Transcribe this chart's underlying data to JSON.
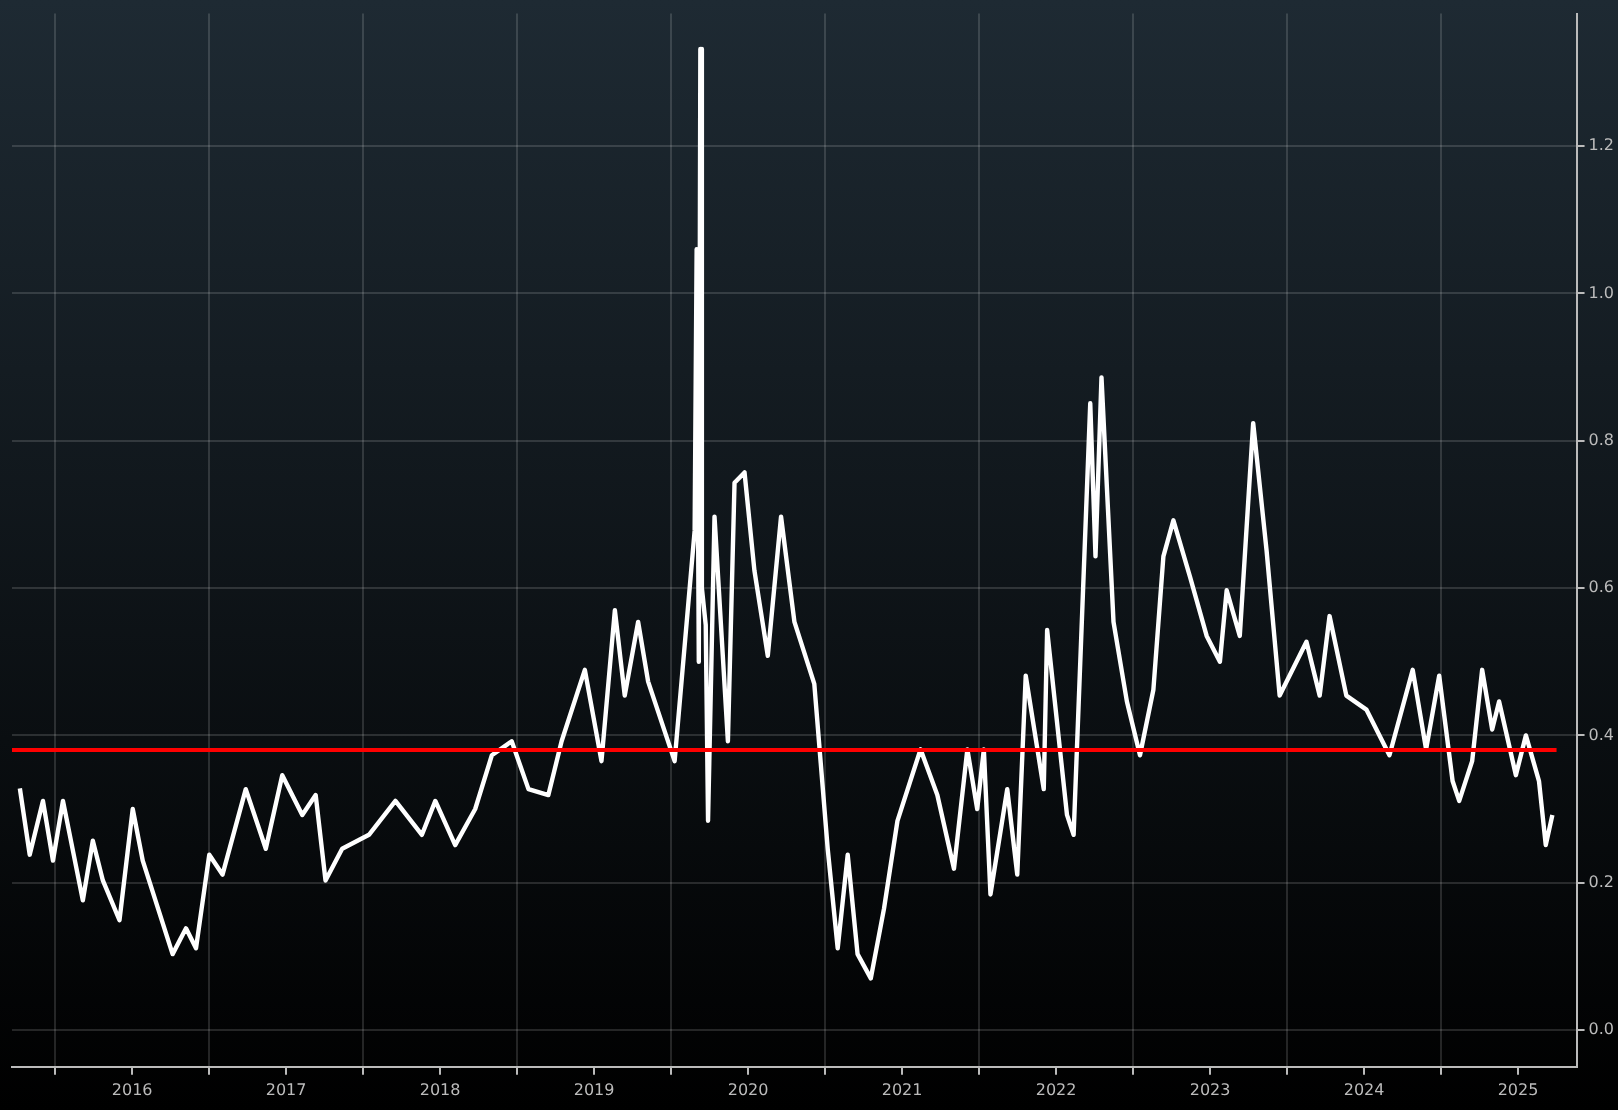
{
  "chart_data": {
    "type": "line",
    "color": "#ffffff",
    "line_style": "solid",
    "marker": "none",
    "grid": true,
    "legend": false,
    "x": [
      2015.771,
      2015.835,
      2015.921,
      2015.986,
      2016.051,
      2016.18,
      2016.245,
      2016.31,
      2016.418,
      2016.504,
      2016.569,
      2016.763,
      2016.85,
      2016.915,
      2017.001,
      2017.087,
      2017.238,
      2017.368,
      2017.475,
      2017.605,
      2017.692,
      2017.756,
      2017.864,
      2018.038,
      2018.21,
      2018.382,
      2018.469,
      2018.598,
      2018.728,
      2018.836,
      2018.965,
      2019.074,
      2019.203,
      2019.289,
      2019.44,
      2019.548,
      2019.635,
      2019.699,
      2019.786,
      2019.851,
      2020.023,
      2020.153,
      2020.166,
      2020.18,
      2020.19,
      2020.2,
      2020.225,
      2020.24,
      2020.282,
      2020.369,
      2020.412,
      2020.477,
      2020.541,
      2020.628,
      2020.714,
      2020.801,
      2020.93,
      2021.017,
      2021.082,
      2021.147,
      2021.211,
      2021.297,
      2021.383,
      2021.47,
      2021.62,
      2021.729,
      2021.837,
      2021.924,
      2021.988,
      2022.031,
      2022.074,
      2022.183,
      2022.248,
      2022.303,
      2022.42,
      2022.442,
      2022.571,
      2022.614,
      2022.722,
      2022.756,
      2022.795,
      2022.873,
      2022.96,
      2023.045,
      2023.132,
      2023.197,
      2023.262,
      2023.369,
      2023.478,
      2023.564,
      2023.608,
      2023.693,
      2023.78,
      2023.867,
      2023.952,
      2024.126,
      2024.212,
      2024.276,
      2024.385,
      2024.515,
      2024.665,
      2024.816,
      2024.903,
      2024.988,
      2025.075,
      2025.118,
      2025.202,
      2025.267,
      2025.332,
      2025.377,
      2025.486,
      2025.551,
      2025.636,
      2025.68,
      2025.723
    ],
    "values": [
      0.328,
      0.238,
      0.311,
      0.23,
      0.311,
      0.176,
      0.257,
      0.203,
      0.149,
      0.3,
      0.23,
      0.103,
      0.138,
      0.111,
      0.238,
      0.211,
      0.327,
      0.246,
      0.346,
      0.292,
      0.319,
      0.203,
      0.246,
      0.265,
      0.311,
      0.265,
      0.311,
      0.251,
      0.3,
      0.373,
      0.392,
      0.327,
      0.319,
      0.392,
      0.489,
      0.365,
      0.57,
      0.454,
      0.554,
      0.473,
      0.365,
      0.678,
      1.06,
      0.5,
      1.332,
      0.6,
      0.55,
      0.284,
      0.697,
      0.392,
      0.743,
      0.757,
      0.624,
      0.508,
      0.697,
      0.554,
      0.47,
      0.246,
      0.111,
      0.238,
      0.103,
      0.07,
      0.165,
      0.284,
      0.381,
      0.319,
      0.219,
      0.381,
      0.3,
      0.381,
      0.184,
      0.327,
      0.211,
      0.481,
      0.327,
      0.543,
      0.292,
      0.265,
      0.851,
      0.643,
      0.886,
      0.554,
      0.446,
      0.373,
      0.462,
      0.643,
      0.692,
      0.616,
      0.535,
      0.5,
      0.597,
      0.535,
      0.824,
      0.651,
      0.454,
      0.527,
      0.454,
      0.562,
      0.454,
      0.435,
      0.373,
      0.489,
      0.381,
      0.481,
      0.338,
      0.311,
      0.365,
      0.489,
      0.408,
      0.446,
      0.346,
      0.4,
      0.338,
      0.251,
      0.292
    ],
    "xlim": [
      2015.72,
      2025.88
    ],
    "ylim": [
      -0.05,
      1.38
    ],
    "xticks": [
      {
        "value": 2016,
        "label": null
      },
      {
        "value": 2016.5,
        "label": "2016"
      },
      {
        "value": 2017,
        "label": null
      },
      {
        "value": 2017.5,
        "label": "2017"
      },
      {
        "value": 2018,
        "label": null
      },
      {
        "value": 2018.5,
        "label": "2018"
      },
      {
        "value": 2019,
        "label": null
      },
      {
        "value": 2019.5,
        "label": "2019"
      },
      {
        "value": 2020,
        "label": null
      },
      {
        "value": 2020.5,
        "label": "2020"
      },
      {
        "value": 2021,
        "label": null
      },
      {
        "value": 2021.5,
        "label": "2021"
      },
      {
        "value": 2022,
        "label": null
      },
      {
        "value": 2022.5,
        "label": "2022"
      },
      {
        "value": 2023,
        "label": null
      },
      {
        "value": 2023.5,
        "label": "2023"
      },
      {
        "value": 2024,
        "label": null
      },
      {
        "value": 2024.5,
        "label": "2024"
      },
      {
        "value": 2025,
        "label": null
      },
      {
        "value": 2025.5,
        "label": "2025"
      }
    ],
    "yticks": [
      {
        "value": 0,
        "label": "0.0"
      },
      {
        "value": 0.2,
        "label": "0.2"
      },
      {
        "value": 0.4,
        "label": "0.4"
      },
      {
        "value": 0.6,
        "label": "0.6"
      },
      {
        "value": 0.8,
        "label": "0.8"
      },
      {
        "value": 1.0,
        "label": "1.0"
      },
      {
        "value": 1.2,
        "label": "1.2"
      }
    ],
    "ref_lines": [
      {
        "axis": "y",
        "value": 0.38,
        "color": "#ff0000",
        "line_style": "solid"
      }
    ]
  }
}
